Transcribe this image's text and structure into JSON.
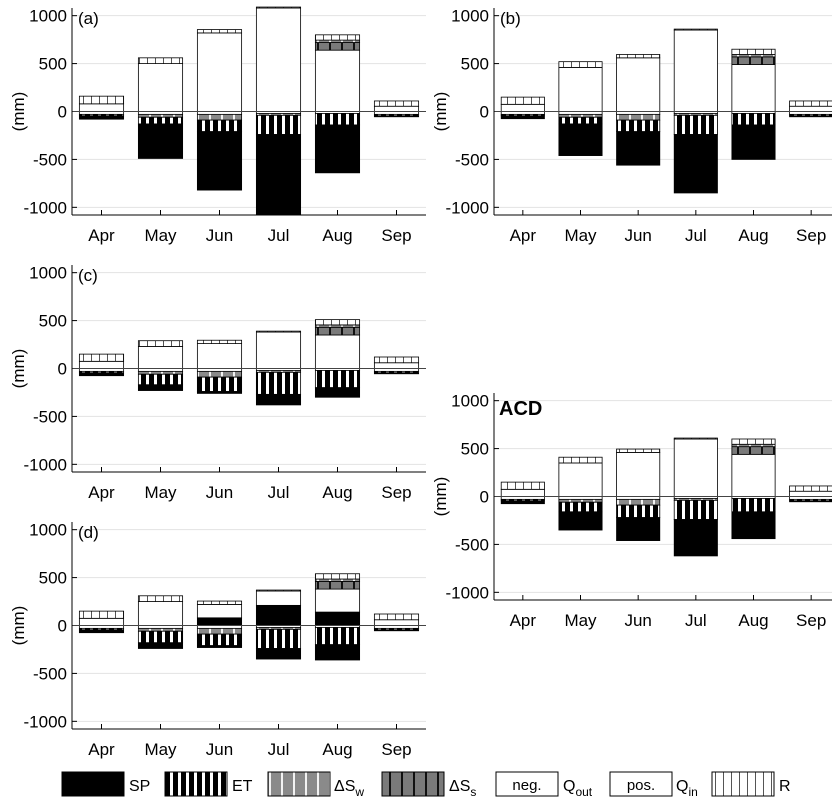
{
  "figure": {
    "legend": {
      "items": [
        {
          "key": "SP",
          "label": "SP"
        },
        {
          "key": "ET",
          "label": "ET"
        },
        {
          "key": "dSw",
          "label": "ΔS",
          "sub": "w"
        },
        {
          "key": "dSs",
          "label": "ΔS",
          "sub": "s"
        },
        {
          "key": "Qout",
          "box": "neg.",
          "label": "Q",
          "sub": "out"
        },
        {
          "key": "Qin",
          "box": "pos.",
          "label": "Q",
          "sub": "in"
        },
        {
          "key": "R",
          "label": "R"
        }
      ]
    }
  },
  "chart_data": [
    {
      "id": "a",
      "type": "bar",
      "panel_label": "(a)",
      "ylabel": "(mm)",
      "categories": [
        "Apr",
        "May",
        "Jun",
        "Jul",
        "Aug",
        "Sep"
      ],
      "ylim": [
        -1080,
        1080
      ],
      "yticks": [
        -1000,
        -500,
        0,
        500,
        1000
      ],
      "grid": true,
      "series": [
        {
          "key": "Qin",
          "values": [
            80,
            500,
            820,
            1080,
            640,
            55
          ]
        },
        {
          "key": "dSs",
          "values": [
            0,
            0,
            0,
            0,
            80,
            0
          ]
        },
        {
          "key": "dSw",
          "values": [
            0,
            0,
            0,
            0,
            25,
            0
          ]
        },
        {
          "key": "R",
          "values": [
            80,
            60,
            35,
            10,
            55,
            55
          ]
        },
        {
          "key": "Qout",
          "values": [
            -30,
            -30,
            -30,
            -20,
            -20,
            -30
          ]
        },
        {
          "key": "dSwNeg",
          "values": [
            0,
            -30,
            -60,
            -20,
            0,
            0
          ]
        },
        {
          "key": "ET",
          "values": [
            -15,
            -70,
            -120,
            -200,
            -120,
            -15
          ]
        },
        {
          "key": "SP",
          "values": [
            -35,
            -360,
            -610,
            -840,
            -500,
            -10
          ]
        }
      ]
    },
    {
      "id": "b",
      "type": "bar",
      "panel_label": "(b)",
      "ylabel": "(mm)",
      "categories": [
        "Apr",
        "May",
        "Jun",
        "Jul",
        "Aug",
        "Sep"
      ],
      "ylim": [
        -1080,
        1080
      ],
      "yticks": [
        -1000,
        -500,
        0,
        500,
        1000
      ],
      "grid": true,
      "series": [
        {
          "key": "Qin",
          "values": [
            75,
            460,
            560,
            850,
            490,
            55
          ]
        },
        {
          "key": "dSs",
          "values": [
            0,
            0,
            0,
            0,
            80,
            0
          ]
        },
        {
          "key": "dSw",
          "values": [
            0,
            0,
            0,
            0,
            25,
            0
          ]
        },
        {
          "key": "R",
          "values": [
            75,
            60,
            35,
            10,
            55,
            55
          ]
        },
        {
          "key": "Qout",
          "values": [
            -30,
            -30,
            -30,
            -20,
            -20,
            -30
          ]
        },
        {
          "key": "dSwNeg",
          "values": [
            0,
            -30,
            -60,
            -20,
            0,
            0
          ]
        },
        {
          "key": "ET",
          "values": [
            -15,
            -70,
            -120,
            -200,
            -120,
            -15
          ]
        },
        {
          "key": "SP",
          "values": [
            -30,
            -330,
            -350,
            -610,
            -360,
            -10
          ]
        }
      ]
    },
    {
      "id": "c",
      "type": "bar",
      "panel_label": "(c)",
      "ylabel": "(mm)",
      "categories": [
        "Apr",
        "May",
        "Jun",
        "Jul",
        "Aug",
        "Sep"
      ],
      "ylim": [
        -1080,
        1080
      ],
      "yticks": [
        -1000,
        -500,
        0,
        500,
        1000
      ],
      "grid": true,
      "series": [
        {
          "key": "Qin",
          "values": [
            75,
            230,
            260,
            380,
            350,
            60
          ]
        },
        {
          "key": "dSs",
          "values": [
            0,
            0,
            0,
            0,
            80,
            0
          ]
        },
        {
          "key": "dSw",
          "values": [
            0,
            0,
            0,
            0,
            25,
            0
          ]
        },
        {
          "key": "R",
          "values": [
            75,
            60,
            35,
            10,
            55,
            60
          ]
        },
        {
          "key": "Qout",
          "values": [
            -30,
            -30,
            -30,
            -20,
            -20,
            -30
          ]
        },
        {
          "key": "dSwNeg",
          "values": [
            0,
            -30,
            -60,
            -20,
            0,
            0
          ]
        },
        {
          "key": "ET",
          "values": [
            -15,
            -110,
            -150,
            -230,
            -180,
            -15
          ]
        },
        {
          "key": "SP",
          "values": [
            -30,
            -60,
            -20,
            -110,
            -100,
            -10
          ]
        }
      ]
    },
    {
      "id": "d",
      "type": "bar",
      "panel_label": "(d)",
      "ylabel": "(mm)",
      "categories": [
        "Apr",
        "May",
        "Jun",
        "Jul",
        "Aug",
        "Sep"
      ],
      "ylim": [
        -1080,
        1080
      ],
      "yticks": [
        -1000,
        -500,
        0,
        500,
        1000
      ],
      "grid": true,
      "series": [
        {
          "key": "SPPos",
          "values": [
            0,
            0,
            80,
            210,
            140,
            0
          ]
        },
        {
          "key": "Qin",
          "values": [
            75,
            250,
            140,
            150,
            240,
            60
          ]
        },
        {
          "key": "dSs",
          "values": [
            0,
            0,
            0,
            0,
            80,
            0
          ]
        },
        {
          "key": "dSw",
          "values": [
            0,
            0,
            0,
            0,
            25,
            0
          ]
        },
        {
          "key": "R",
          "values": [
            75,
            60,
            35,
            10,
            55,
            60
          ]
        },
        {
          "key": "Qout",
          "values": [
            -30,
            -30,
            -30,
            -20,
            -20,
            -30
          ]
        },
        {
          "key": "dSwNeg",
          "values": [
            0,
            -30,
            -60,
            -20,
            0,
            0
          ]
        },
        {
          "key": "ET",
          "values": [
            -15,
            -120,
            -120,
            -200,
            -180,
            -15
          ]
        },
        {
          "key": "SP",
          "values": [
            -30,
            -60,
            -20,
            -110,
            -160,
            -10
          ]
        }
      ]
    },
    {
      "id": "acd",
      "type": "bar",
      "panel_label": "ACD",
      "ylabel": "(mm)",
      "categories": [
        "Apr",
        "May",
        "Jun",
        "Jul",
        "Aug",
        "Sep"
      ],
      "ylim": [
        -1080,
        1080
      ],
      "yticks": [
        -1000,
        -500,
        0,
        500,
        1000
      ],
      "grid": true,
      "series": [
        {
          "key": "Qin",
          "values": [
            75,
            350,
            460,
            600,
            440,
            55
          ]
        },
        {
          "key": "dSs",
          "values": [
            0,
            0,
            0,
            0,
            80,
            0
          ]
        },
        {
          "key": "dSw",
          "values": [
            0,
            0,
            0,
            0,
            25,
            0
          ]
        },
        {
          "key": "R",
          "values": [
            75,
            60,
            35,
            10,
            55,
            55
          ]
        },
        {
          "key": "Qout",
          "values": [
            -30,
            -30,
            -30,
            -20,
            -20,
            -30
          ]
        },
        {
          "key": "dSwNeg",
          "values": [
            0,
            -30,
            -60,
            -20,
            0,
            0
          ]
        },
        {
          "key": "ET",
          "values": [
            -15,
            -100,
            -130,
            -200,
            -140,
            -15
          ]
        },
        {
          "key": "SP",
          "values": [
            -30,
            -190,
            -240,
            -380,
            -280,
            -10
          ]
        }
      ]
    }
  ]
}
